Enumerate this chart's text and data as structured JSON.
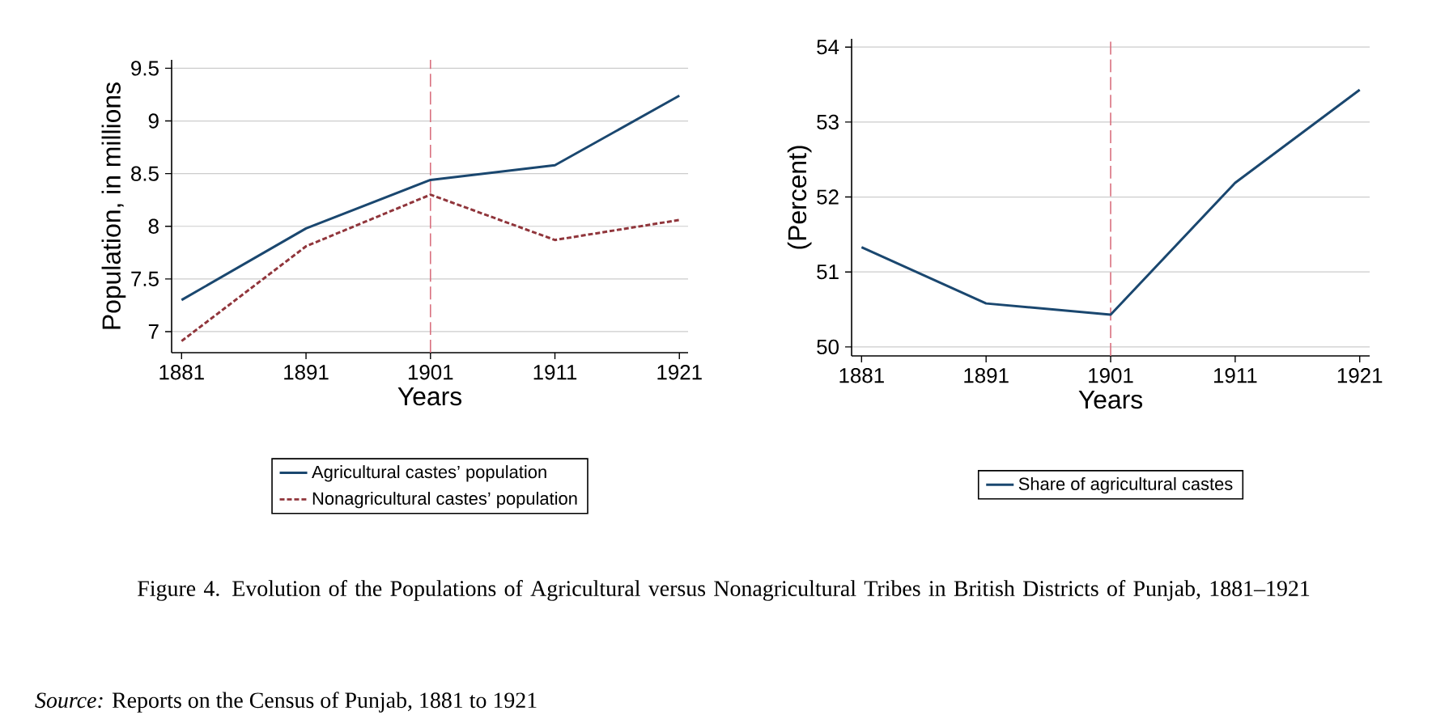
{
  "chart_data": [
    {
      "type": "line",
      "x": [
        1881,
        1891,
        1901,
        1911,
        1921
      ],
      "series": [
        {
          "name": "Agricultural castes’ population",
          "color": "#1a476f",
          "line_style": "solid",
          "values": [
            7.3,
            7.98,
            8.44,
            8.58,
            9.24
          ]
        },
        {
          "name": "Nonagricultural castes’ population",
          "color": "#90353b",
          "line_style": "dashed",
          "values": [
            6.91,
            7.81,
            8.3,
            7.87,
            8.06
          ]
        }
      ],
      "xlabel": "Years",
      "ylabel": "Population, in millions",
      "xlim": [
        1880.2,
        1921.7
      ],
      "ylim": [
        6.8,
        9.58
      ],
      "xticks": [
        1881,
        1891,
        1901,
        1911,
        1921
      ],
      "yticks": [
        7,
        7.5,
        8,
        8.5,
        9,
        9.5
      ],
      "grid": "y",
      "legend": "bottom",
      "ref_lines": [
        {
          "axis": "x",
          "value": 1901,
          "color": "#d9707f",
          "line_style": "dashed"
        }
      ],
      "annotations": [
        "Figure 4. Evolution of the Populations of Agricultural versus Nonagricultural Tribes in British Districts of Punjab, 1881–1921",
        "*Source:* Reports on the Census of Punjab, 1881 to 1921"
      ]
    },
    {
      "type": "line",
      "x": [
        1881,
        1891,
        1901,
        1911,
        1921
      ],
      "series": [
        {
          "name": "Share of agricultural castes",
          "color": "#1a476f",
          "line_style": "solid",
          "values": [
            51.33,
            50.58,
            50.43,
            52.19,
            53.43
          ]
        }
      ],
      "xlabel": "Years",
      "ylabel": "(Percent)",
      "xlim": [
        1880.2,
        1921.8
      ],
      "ylim": [
        49.88,
        54.11
      ],
      "xticks": [
        1881,
        1891,
        1901,
        1911,
        1921
      ],
      "yticks": [
        50,
        51,
        52,
        53,
        54
      ],
      "grid": "y",
      "legend": "bottom",
      "ref_lines": [
        {
          "axis": "x",
          "value": 1901,
          "color": "#d9707f",
          "line_style": "dashed"
        }
      ]
    }
  ]
}
